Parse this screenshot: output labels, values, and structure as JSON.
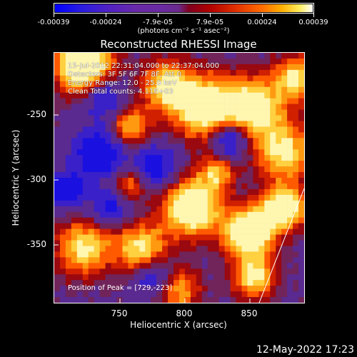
{
  "chart_data": {
    "type": "heatmap",
    "title": "Reconstructed RHESSI Image",
    "xlabel": "Heliocentric X (arcsec)",
    "ylabel": "Heliocentric Y (arcsec)",
    "xlim": [
      703,
      891
    ],
    "ylim": [
      -397,
      -209
    ],
    "xticks": [
      "750",
      "800",
      "850"
    ],
    "yticks": [
      "-250",
      "-300",
      "-350"
    ],
    "colorbar": {
      "ticks": [
        "-0.00039",
        "-0.00024",
        "-7.9e-05",
        "7.9e-05",
        "0.00024",
        "0.00039"
      ],
      "unit": "(photons cm⁻² s⁻¹ asec⁻²)",
      "range": [
        -0.00039,
        0.00039
      ]
    },
    "annotations": {
      "time": "15-Jul-2012 22:31:04.000 to 22:37:04.000",
      "detectors": "Detectors: 3F 5F 6F 7F 8F, Att 0",
      "energy": "Energy Range: 12.0 - 25.0 keV",
      "clean": "Clean     Total counts: 4.11E+03",
      "peak": "Position of Peak = [729,-223]"
    },
    "peak_position": [
      729,
      -223
    ],
    "grid": false
  },
  "footer": {
    "date": "12-May-2022 17:23"
  },
  "colors": {
    "background": "#000000",
    "axis": "#ffffff",
    "map_base": "#5a2a90"
  }
}
